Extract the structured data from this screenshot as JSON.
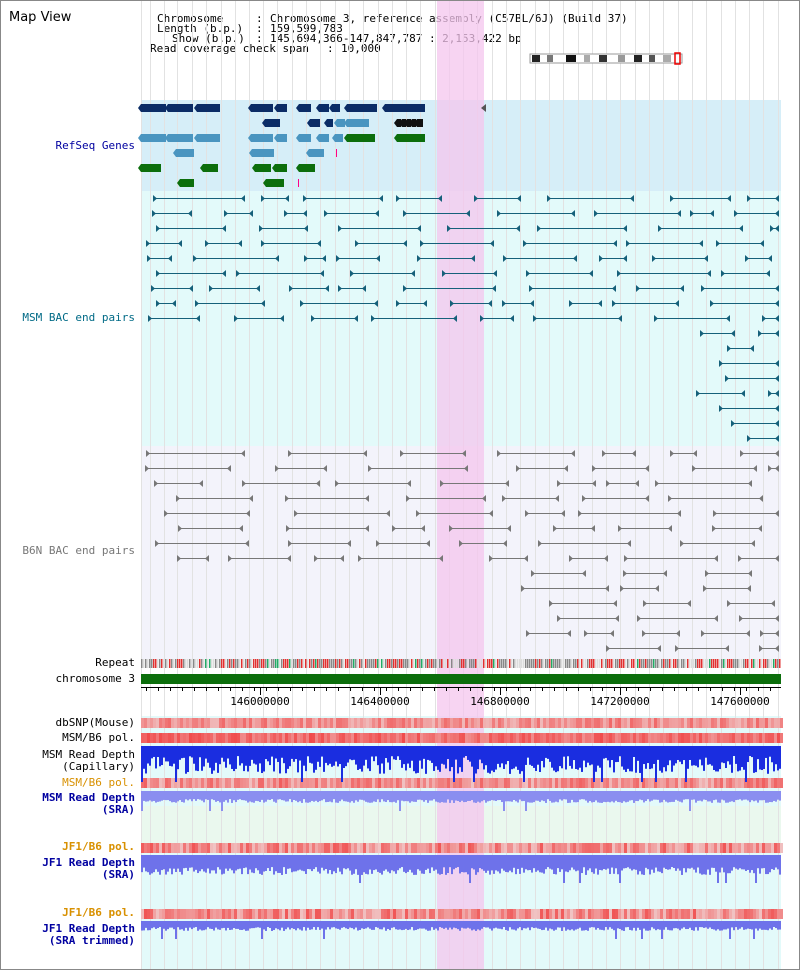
{
  "title": "Map View",
  "header": {
    "chromosome_label": "Chromosome",
    "chromosome_value": "Chromosome 3, reference assembly (C57BL/6J) (Build 37)",
    "length_label": "Length (b.p.)",
    "length_value": "159,599,783",
    "show_label": "Show (b.p.)",
    "show_value": "145,694,366-147,847,787 : 2,153,422 bp",
    "coverage_label": "Read coverage check span",
    "coverage_value": "10,000"
  },
  "tracks": {
    "refseq": "RefSeq Genes",
    "msm_bac": "MSM BAC end pairs",
    "b6n_bac": "B6N BAC end pairs",
    "repeat": "Repeat",
    "chromosome": "chromosome 3",
    "dbsnp": "dbSNP(Mouse)",
    "msm_b6_pol": "MSM/B6 pol.",
    "msm_read_depth_cap_1": "MSM Read Depth",
    "msm_read_depth_cap_2": "(Capillary)",
    "msm_b6_pol_2": "MSM/B6 pol.",
    "msm_read_depth_sra_1": "MSM Read Depth",
    "msm_read_depth_sra_2": "(SRA)",
    "jf1_b6_pol": "JF1/B6 pol.",
    "jf1_read_depth_sra_1": "JF1 Read Depth",
    "jf1_read_depth_sra_2": "(SRA)",
    "jf1_b6_pol_2": "JF1/B6 pol.",
    "jf1_read_depth_trim_1": "JF1 Read Depth",
    "jf1_read_depth_trim_2": "(SRA trimmed)"
  },
  "axis": {
    "ticks": [
      "146000000",
      "146400000",
      "146800000",
      "147200000",
      "147600000"
    ]
  },
  "colors": {
    "gene_navy": "#0b2c66",
    "gene_blue": "#4a95c0",
    "gene_green": "#0c6e0c",
    "msm_bac": "#15607a",
    "b6n_bac": "#777777",
    "highlight": "#f4c6ee",
    "refseq_bg": "#d6eef8",
    "msm_bg": "#e3fafa",
    "b6n_bg": "#f3f3fb",
    "label_blue": "#0000a0",
    "label_teal": "#006a86",
    "label_orange": "#d89000"
  }
}
